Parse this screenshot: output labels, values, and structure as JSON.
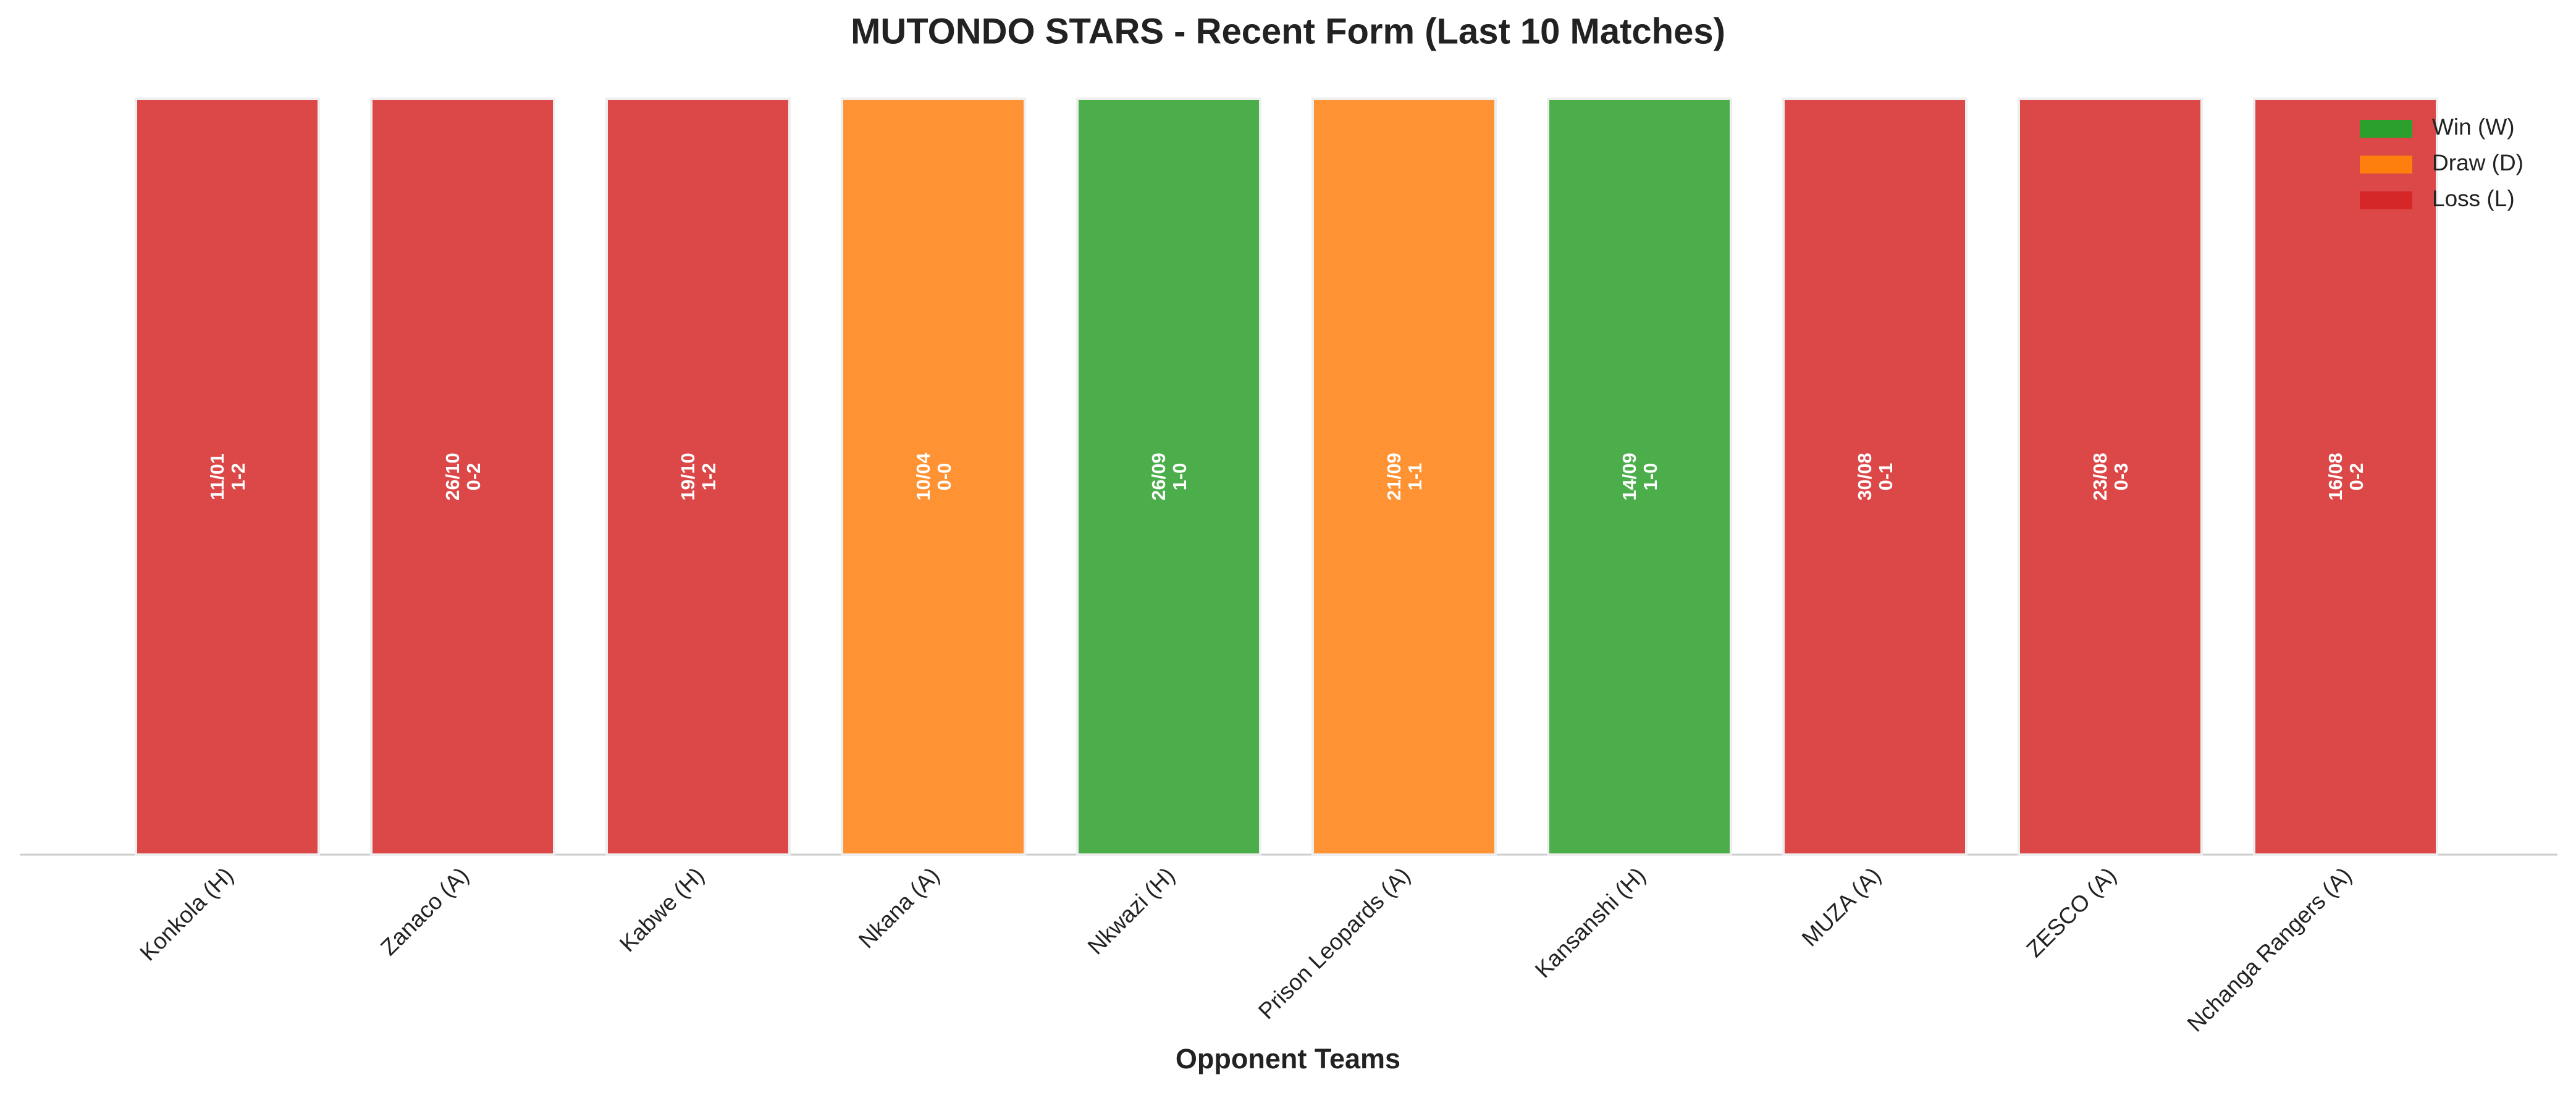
{
  "chart_data": {
    "type": "bar",
    "title": "MUTONDO STARS - Recent Form (Last 10 Matches)",
    "x_label": "Opponent Teams",
    "categories": [
      "Konkola (H)",
      "Zanaco (A)",
      "Kabwe (H)",
      "Nkana (A)",
      "Nkwazi (H)",
      "Prison Leopards (A)",
      "Kansanshi (H)",
      "MUZA (A)",
      "ZESCO (A)",
      "Nchanga Rangers (A)"
    ],
    "values": [
      1,
      1,
      1,
      1,
      1,
      1,
      1,
      1,
      1,
      1
    ],
    "dates": [
      "11/01",
      "26/10",
      "19/10",
      "10/04",
      "26/09",
      "21/09",
      "14/09",
      "30/08",
      "23/08",
      "16/08"
    ],
    "scores": [
      "1-2",
      "0-2",
      "1-2",
      "0-0",
      "1-0",
      "1-1",
      "1-0",
      "0-1",
      "0-3",
      "0-2"
    ],
    "colors": [
      "#d62728",
      "#d62728",
      "#d62728",
      "#ff7f0e",
      "#2ca02c",
      "#ff7f0e",
      "#2ca02c",
      "#d62728",
      "#d62728",
      "#d62728"
    ],
    "ylim": [
      0,
      1
    ],
    "legend": [
      {
        "name": "Win (W)",
        "color": "#2ca02c"
      },
      {
        "name": "Draw (D)",
        "color": "#ff7f0e"
      },
      {
        "name": "Loss (L)",
        "color": "#d62728"
      }
    ],
    "legend_position": "upper right"
  }
}
